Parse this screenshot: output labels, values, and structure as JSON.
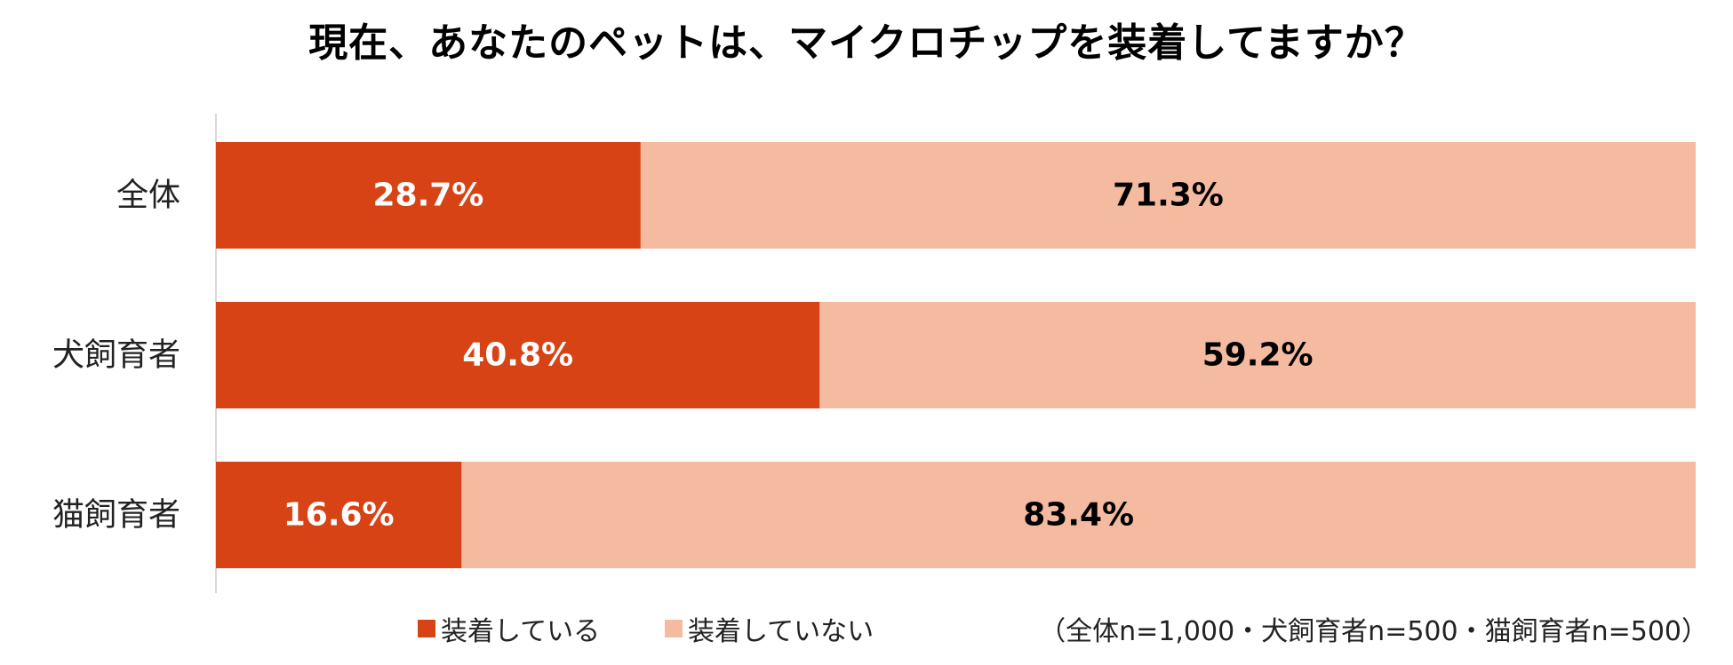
{
  "chart_data": {
    "type": "bar",
    "orientation": "horizontal",
    "stacked": true,
    "title": "現在、あなたのペットは、マイクロチップを装着してますか？",
    "categories": [
      "全体",
      "犬飼育者",
      "猫飼育者"
    ],
    "series": [
      {
        "name": "装着している",
        "values": [
          28.7,
          40.8,
          16.6
        ],
        "labels": [
          "28.7%",
          "40.8%",
          "16.6%"
        ],
        "color": "#d84315",
        "label_color": "#ffffff"
      },
      {
        "name": "装着していない",
        "values": [
          71.3,
          59.2,
          83.4
        ],
        "labels": [
          "71.3%",
          "59.2%",
          "83.4%"
        ],
        "color": "#f5bba0",
        "label_color": "#000000"
      }
    ],
    "xlim": [
      0,
      100
    ],
    "grid": false,
    "legend_position": "bottom",
    "note": "（全体n=1,000・犬飼育者n=500・猫飼育者n=500）"
  }
}
